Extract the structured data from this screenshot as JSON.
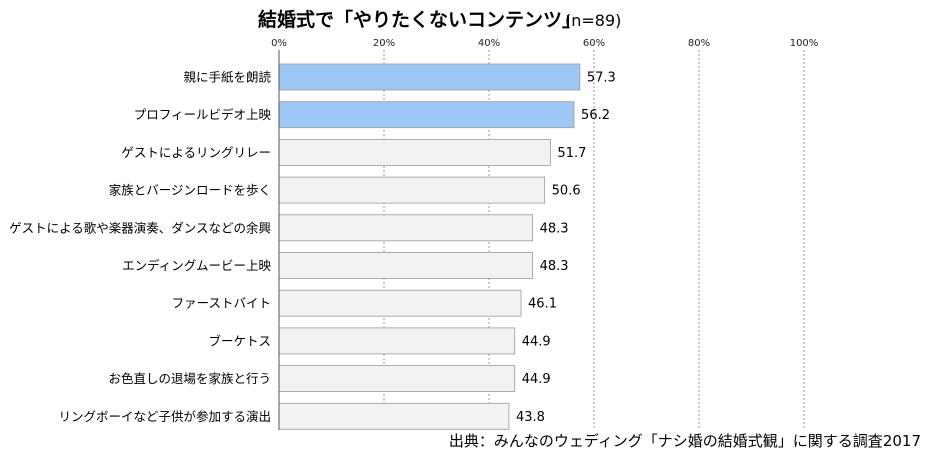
{
  "chart_data": {
    "type": "bar",
    "orientation": "horizontal",
    "title": "結婚式で「やりたくないコンテンツ」",
    "subtitle": "(n=89)",
    "xlabel": "",
    "ylabel": "",
    "xlim": [
      0,
      100
    ],
    "tick_values": [
      0,
      20,
      40,
      60,
      80,
      100
    ],
    "tick_labels": [
      "0%",
      "20%",
      "40%",
      "60%",
      "80%",
      "100%"
    ],
    "gridlines": "dashed-vertical",
    "categories": [
      "親に手紙を朗読",
      "プロフィールビデオ上映",
      "ゲストによるリングリレー",
      "家族とバージンロードを歩く",
      "ゲストによる歌や楽器演奏、ダンスなどの余興",
      "エンディングムービー上映",
      "ファーストバイト",
      "ブーケトス",
      "お色直しの退場を家族と行う",
      "リングボーイなど子供が参加する演出"
    ],
    "values": [
      57.3,
      56.2,
      51.7,
      50.6,
      48.3,
      48.3,
      46.1,
      44.9,
      44.9,
      43.8
    ],
    "value_labels": [
      "57.3",
      "56.2",
      "51.7",
      "50.6",
      "48.3",
      "48.3",
      "46.1",
      "44.9",
      "44.9",
      "43.8"
    ],
    "highlight_count": 2,
    "colors": {
      "highlight": "#9dc8f5",
      "normal": "#f2f2f2",
      "bar_stroke": "#9a9a9a",
      "grid": "#9a9a9a",
      "axis": "#555555"
    },
    "source": "出典：みんなのウェディング「ナシ婚の結婚式観」に関する調査2017"
  }
}
